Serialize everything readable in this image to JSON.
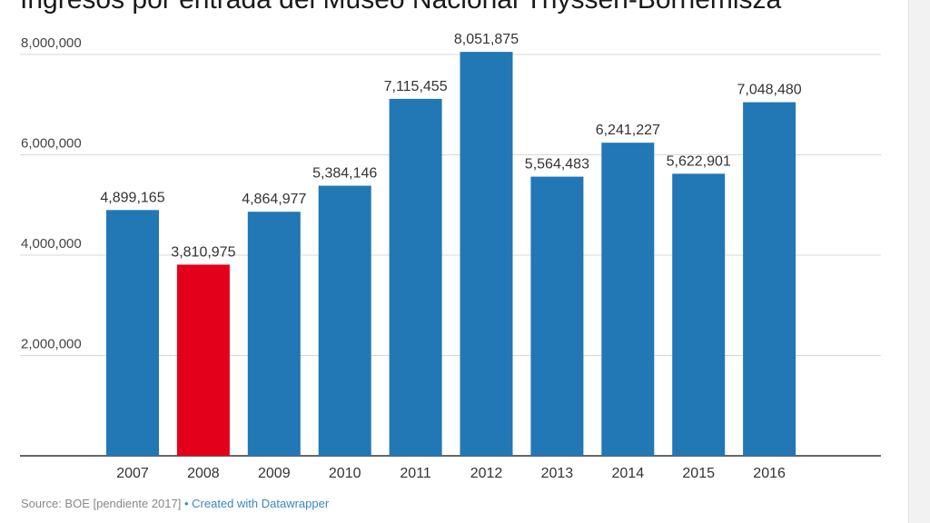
{
  "chart_data": {
    "type": "bar",
    "title": "Ingresos por entrada del Museo Nacional Thyssen-Bornemisza",
    "categories": [
      "2007",
      "2008",
      "2009",
      "2010",
      "2011",
      "2012",
      "2013",
      "2014",
      "2015",
      "2016"
    ],
    "values": [
      4899165,
      3810975,
      4864977,
      5384146,
      7115455,
      8051875,
      5564483,
      6241227,
      5622901,
      7048480
    ],
    "value_labels": [
      "4,899,165",
      "3,810,975",
      "4,864,977",
      "5,384,146",
      "7,115,455",
      "8,051,875",
      "5,564,483",
      "6,241,227",
      "5,622,901",
      "7,048,480"
    ],
    "yticks": [
      0,
      2000000,
      4000000,
      6000000,
      8000000
    ],
    "ytick_labels": [
      "",
      "2,000,000",
      "4,000,000",
      "6,000,000",
      "8,000,000"
    ],
    "ylim": [
      0,
      8000000
    ],
    "grid": true,
    "colors": {
      "default": "#2277b5",
      "highlight": "#e3001b",
      "highlight_category": "2008"
    },
    "xlabel": "",
    "ylabel": ""
  },
  "footer": {
    "source": "Source: BOE [pendiente 2017]",
    "separator": " • ",
    "credit": "Created with Datawrapper"
  }
}
